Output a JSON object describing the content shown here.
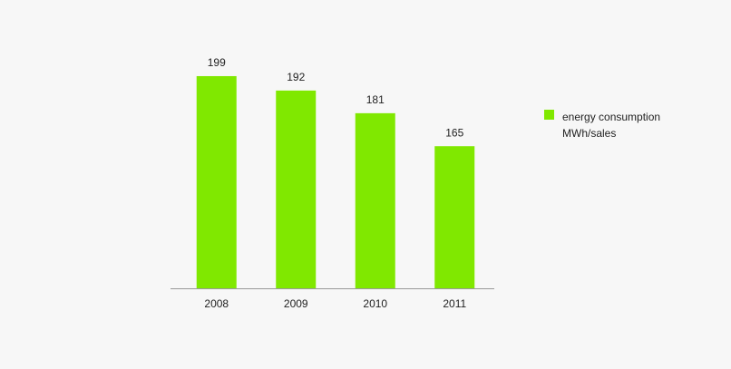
{
  "chart_data": {
    "type": "bar",
    "categories": [
      "2008",
      "2009",
      "2010",
      "2011"
    ],
    "series": [
      {
        "name": "energy consumption MWh/sales",
        "color": "#80e800",
        "values": [
          199,
          192,
          181,
          165
        ]
      }
    ],
    "ylim": [
      96,
      200
    ]
  }
}
